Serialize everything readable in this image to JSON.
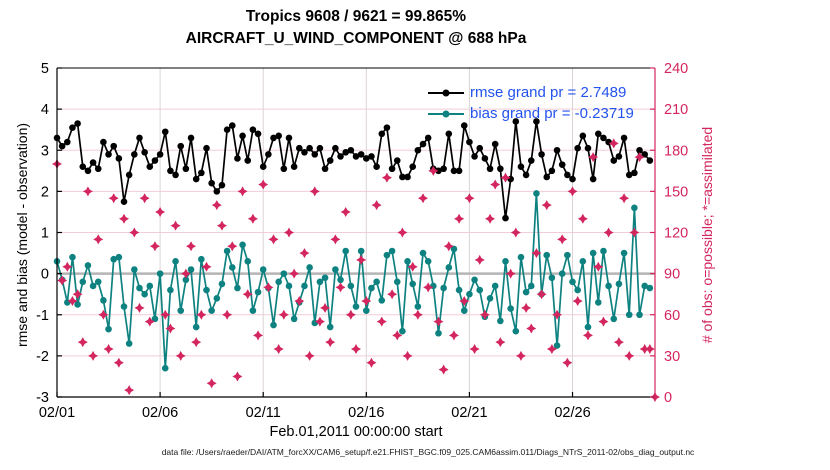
{
  "header": {
    "title_line1": "Tropics 9608 / 9621 = 99.865%",
    "title_line2": "AIRCRAFT_U_WIND_COMPONENT @ 688 hPa"
  },
  "legend": [
    {
      "label": "rmse grand pr = 2.7489",
      "series": "rmse"
    },
    {
      "label": "bias grand pr = -0.23719",
      "series": "bias"
    }
  ],
  "footer": {
    "data_file_caption": "data file: /Users/raeder/DAI/ATM_forcXX/CAM6_setup/f.e21.FHIST_BGC.f09_025.CAM6assim.011/Diags_NTrS_2011-02/obs_diag_output.nc"
  },
  "colors": {
    "rmse_black": "#000000",
    "bias_teal": "#0e8280",
    "obs_crimson": "#d4265e",
    "legend_text_blue": "#2353ee",
    "grid_horizontal": "#f2ccd6",
    "grid_vertical": "#dcd4d6",
    "zero_line_grey": "#b5b5b5",
    "axis_black": "#000000",
    "axis_crimson": "#d4265e"
  },
  "chart_data": {
    "type": "line",
    "title": "Tropics 9608 / 9621 = 99.865%",
    "subtitle": "AIRCRAFT_U_WIND_COMPONENT @ 688 hPa",
    "xlabel": "Feb.01,2011 00:00:00 start",
    "left_ylabel": "rmse and bias (model - observation)",
    "right_ylabel": "# of obs: o=possible; *=assimilated",
    "x_ticks": [
      "02/01",
      "02/06",
      "02/11",
      "02/16",
      "02/21",
      "02/26"
    ],
    "x_tick_days": [
      0,
      5,
      10,
      15,
      20,
      25
    ],
    "x_range_days": 29,
    "step_days": 0.25,
    "left_ylim": [
      -3,
      5
    ],
    "right_ylim": [
      0,
      240
    ],
    "left_ticks": [
      -3,
      -2,
      -1,
      0,
      1,
      2,
      3,
      4,
      5
    ],
    "right_ticks": [
      0,
      30,
      60,
      90,
      120,
      150,
      180,
      210,
      240
    ],
    "grid": true,
    "legend_position": "top-right-inside",
    "series": [
      {
        "name": "rmse",
        "grand_pr": 2.7489,
        "axis": "left",
        "marker": "circle",
        "color_key": "rmse_black",
        "values": [
          3.3,
          3.1,
          3.2,
          3.55,
          3.65,
          2.6,
          2.5,
          2.7,
          2.55,
          3.2,
          2.9,
          3.1,
          2.8,
          1.75,
          2.4,
          2.9,
          3.3,
          2.95,
          2.6,
          2.75,
          2.9,
          3.45,
          2.5,
          2.4,
          3.1,
          2.55,
          3.3,
          2.3,
          2.45,
          3.05,
          2.2,
          2.0,
          2.15,
          3.5,
          3.6,
          2.8,
          3.35,
          2.75,
          3.5,
          3.4,
          2.6,
          2.9,
          3.3,
          3.35,
          2.55,
          3.3,
          2.6,
          3.05,
          2.95,
          3.05,
          2.9,
          3.05,
          2.55,
          2.75,
          3.05,
          2.85,
          2.95,
          3.0,
          2.85,
          2.9,
          2.8,
          2.85,
          2.6,
          3.4,
          3.55,
          2.55,
          2.75,
          2.35,
          2.35,
          2.6,
          3.0,
          3.15,
          3.3,
          2.55,
          2.5,
          2.55,
          3.4,
          2.5,
          2.5,
          3.6,
          3.2,
          2.85,
          3.05,
          2.8,
          2.55,
          3.15,
          2.55,
          1.35,
          2.3,
          3.7,
          2.6,
          2.4,
          2.75,
          3.7,
          2.9,
          2.35,
          2.5,
          3.0,
          2.65,
          2.4,
          2.3,
          3.05,
          3.35,
          3.05,
          2.3,
          3.4,
          3.3,
          3.2,
          2.75,
          2.85,
          3.3,
          2.4,
          2.45,
          3.0,
          2.9,
          2.75
        ]
      },
      {
        "name": "bias",
        "grand_pr": -0.23719,
        "axis": "left",
        "marker": "circle",
        "color_key": "bias_teal",
        "values": [
          0.3,
          -0.15,
          -0.7,
          0.4,
          -0.75,
          -0.2,
          0.2,
          -0.3,
          -0.2,
          -0.65,
          -1.35,
          0.35,
          0.4,
          -0.8,
          -1.7,
          0.1,
          -0.35,
          -0.5,
          -0.3,
          -1.1,
          0.0,
          -2.3,
          -0.4,
          0.3,
          -0.9,
          -0.15,
          0.1,
          -1.3,
          0.35,
          -0.4,
          -0.9,
          -0.6,
          -0.25,
          0.55,
          0.15,
          -0.35,
          0.7,
          0.3,
          -0.9,
          -0.45,
          0.1,
          -0.35,
          -1.25,
          -0.2,
          0.0,
          -0.3,
          -1.1,
          -0.7,
          -0.3,
          0.15,
          -1.2,
          -0.2,
          -0.1,
          -1.3,
          0.1,
          -0.15,
          0.55,
          -0.3,
          -0.8,
          0.55,
          -0.9,
          -0.35,
          -0.2,
          -0.65,
          0.45,
          0.55,
          -0.2,
          -1.4,
          0.3,
          -0.25,
          -0.8,
          0.5,
          0.3,
          -0.3,
          -1.45,
          -0.35,
          0.15,
          0.6,
          -0.4,
          -0.9,
          -0.5,
          -0.15,
          -0.4,
          -1.05,
          -0.6,
          -0.3,
          -1.15,
          0.3,
          -0.85,
          -1.4,
          0.4,
          -0.45,
          -0.3,
          1.95,
          -0.5,
          0.45,
          -0.1,
          -1.75,
          0.0,
          0.45,
          -0.2,
          -0.4,
          0.3,
          -1.3,
          0.5,
          -0.7,
          0.55,
          -0.3,
          -1.1,
          -0.25,
          0.5,
          -1.0,
          1.6,
          -1.0,
          -0.3,
          -0.35
        ]
      },
      {
        "name": "obs_assimilated",
        "axis": "right",
        "marker": "star",
        "color_key": "obs_crimson",
        "values": [
          170,
          85,
          95,
          70,
          75,
          40,
          150,
          30,
          115,
          60,
          35,
          145,
          25,
          130,
          5,
          120,
          65,
          145,
          55,
          110,
          135,
          60,
          50,
          125,
          30,
          90,
          110,
          40,
          60,
          95,
          10,
          140,
          125,
          60,
          110,
          15,
          150,
          75,
          130,
          45,
          155,
          80,
          115,
          35,
          60,
          120,
          90,
          70,
          105,
          30,
          150,
          55,
          65,
          40,
          115,
          80,
          135,
          60,
          35,
          100,
          70,
          25,
          140,
          55,
          160,
          75,
          45,
          120,
          30,
          95,
          60,
          145,
          80,
          165,
          55,
          20,
          110,
          45,
          130,
          70,
          145,
          35,
          100,
          60,
          130,
          155,
          40,
          160,
          90,
          120,
          30,
          65,
          50,
          105,
          75,
          140,
          35,
          60,
          115,
          25,
          150,
          70,
          130,
          45,
          175,
          95,
          55,
          120,
          185,
          40,
          145,
          30,
          120,
          175,
          35,
          35,
          0
        ]
      }
    ]
  }
}
